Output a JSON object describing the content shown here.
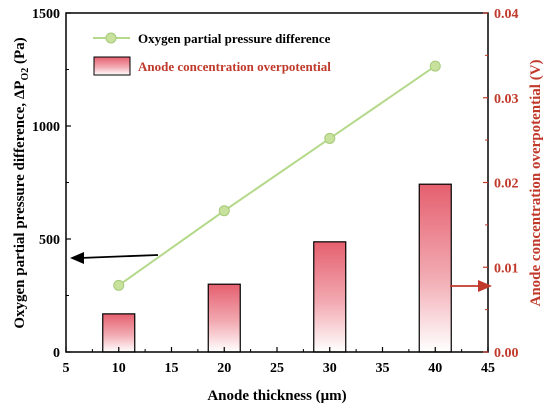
{
  "chart_data": {
    "type": "bar+line",
    "x": [
      10,
      20,
      30,
      40
    ],
    "xlabel": "Anode thickness (μm)",
    "xlim": [
      5,
      45
    ],
    "xticks": [
      5,
      10,
      15,
      20,
      25,
      30,
      35,
      40,
      45
    ],
    "ylabel_left_main": "Oxygen partial pressure difference, ΔP",
    "ylabel_left_sub": "O2",
    "ylabel_left_unit": " (Pa)",
    "ylim_left": [
      0,
      1500
    ],
    "yticks_left": [
      0,
      500,
      1000,
      1500
    ],
    "ylabel_right": "Anode concentration overpotential  (V)",
    "ylim_right": [
      0,
      0.04
    ],
    "yticks_right": [
      "0.00",
      "0.01",
      "0.02",
      "0.03",
      "0.04"
    ],
    "series": [
      {
        "name": "Oxygen partial pressure difference",
        "type": "line",
        "axis": "left",
        "color": "#b5d98a",
        "values": [
          295,
          625,
          945,
          1265
        ]
      },
      {
        "name": "Anode  concentration overpotential",
        "type": "bar",
        "axis": "right",
        "color": "#e06070",
        "values": [
          0.0045,
          0.008,
          0.013,
          0.0198
        ]
      }
    ],
    "legend_position": "top-left",
    "annotations": [
      {
        "type": "arrow",
        "direction": "left",
        "color": "#000000",
        "points_to": "left axis"
      },
      {
        "type": "arrow",
        "direction": "right",
        "color": "#c0392b",
        "points_to": "right axis"
      }
    ]
  }
}
